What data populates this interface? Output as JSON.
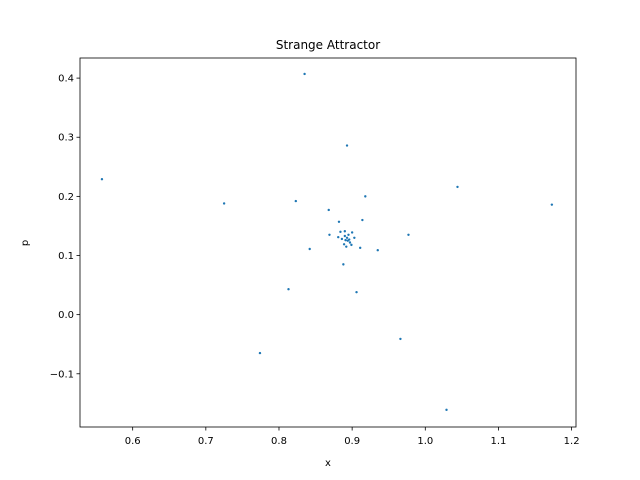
{
  "chart_data": {
    "type": "scatter",
    "title": "Strange Attractor",
    "xlabel": "x",
    "ylabel": "p",
    "xlim": [
      0.528,
      1.206
    ],
    "ylim": [
      -0.19,
      0.434
    ],
    "xticks": [
      0.6,
      0.7,
      0.8,
      0.9,
      1.0,
      1.1,
      1.2
    ],
    "xtick_labels": [
      "0.6",
      "0.7",
      "0.8",
      "0.9",
      "1.0",
      "1.1",
      "1.2"
    ],
    "yticks": [
      -0.1,
      0.0,
      0.1,
      0.2,
      0.3,
      0.4
    ],
    "ytick_labels": [
      "−0.1",
      "0.0",
      "0.1",
      "0.2",
      "0.3",
      "0.4"
    ],
    "grid": false,
    "marker_color": "#1f77b4",
    "series": [
      {
        "x": [
          0.835,
          0.893,
          0.558,
          0.725,
          0.823,
          0.918,
          1.044,
          1.173,
          0.868,
          0.882,
          0.914,
          0.869,
          0.884,
          0.89,
          0.895,
          0.9,
          0.977,
          0.842,
          0.881,
          0.886,
          0.89,
          0.893,
          0.896,
          0.903,
          0.891,
          0.894,
          0.897,
          0.889,
          0.892,
          0.899,
          0.911,
          0.935,
          0.888,
          0.813,
          0.906,
          0.774,
          0.966,
          1.029
        ],
        "y": [
          0.407,
          0.286,
          0.229,
          0.188,
          0.192,
          0.2,
          0.216,
          0.186,
          0.177,
          0.157,
          0.16,
          0.135,
          0.14,
          0.141,
          0.135,
          0.139,
          0.135,
          0.111,
          0.131,
          0.128,
          0.133,
          0.13,
          0.127,
          0.13,
          0.126,
          0.125,
          0.122,
          0.119,
          0.115,
          0.118,
          0.113,
          0.109,
          0.085,
          0.043,
          0.038,
          -0.065,
          -0.041,
          -0.161
        ]
      }
    ]
  }
}
